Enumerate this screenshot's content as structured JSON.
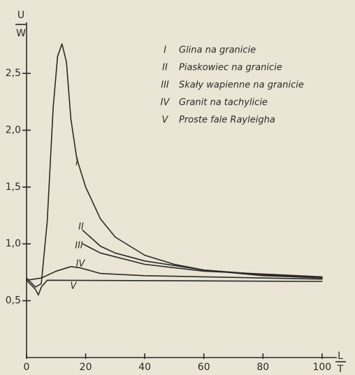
{
  "chart_data": {
    "type": "line",
    "y_label": {
      "numerator": "U",
      "denominator": "W"
    },
    "x_label": {
      "numerator": "L",
      "denominator": "T"
    },
    "xlim": [
      0,
      105
    ],
    "ylim": [
      0,
      2.9
    ],
    "xticks": [
      0,
      20,
      40,
      60,
      80,
      100
    ],
    "yticks": [
      {
        "value": 0.5,
        "label": "0,5"
      },
      {
        "value": 1.0,
        "label": "1,0"
      },
      {
        "value": 1.5,
        "label": "1,5"
      },
      {
        "value": 2.0,
        "label": "2,0"
      },
      {
        "value": 2.5,
        "label": "2,5"
      }
    ],
    "series": [
      {
        "label": "I",
        "name": "Glina na granicie",
        "color": "#2b2a28",
        "x": [
          0,
          3,
          5,
          7,
          9,
          10.5,
          12,
          13.5,
          15,
          17,
          20,
          25,
          30,
          40,
          50,
          60,
          80,
          100
        ],
        "values": [
          0.7,
          0.62,
          0.65,
          1.2,
          2.2,
          2.65,
          2.76,
          2.6,
          2.1,
          1.75,
          1.5,
          1.22,
          1.06,
          0.9,
          0.82,
          0.77,
          0.72,
          0.7
        ]
      },
      {
        "label": "II",
        "name": "Piaskowiec na granicie",
        "color": "#2b2a28",
        "x": [
          19,
          25,
          30,
          40,
          60,
          80,
          100
        ],
        "values": [
          1.12,
          0.98,
          0.92,
          0.85,
          0.77,
          0.73,
          0.7
        ]
      },
      {
        "label": "III",
        "name": "Skały wapienne na granicie",
        "color": "#2b2a28",
        "x": [
          19,
          25,
          40,
          60,
          100
        ],
        "values": [
          1.0,
          0.92,
          0.82,
          0.76,
          0.71
        ]
      },
      {
        "label": "IV",
        "name": "Granit na tachylicie",
        "color": "#2b2a28",
        "x": [
          0,
          5,
          10,
          15,
          18,
          25,
          40,
          100
        ],
        "values": [
          0.68,
          0.7,
          0.76,
          0.8,
          0.79,
          0.74,
          0.72,
          0.69
        ]
      },
      {
        "label": "V",
        "name": "Proste fale Rayleigha",
        "color": "#2b2a28",
        "x": [
          0,
          3,
          4,
          5,
          7,
          100
        ],
        "values": [
          0.68,
          0.6,
          0.55,
          0.62,
          0.68,
          0.67
        ]
      }
    ]
  }
}
